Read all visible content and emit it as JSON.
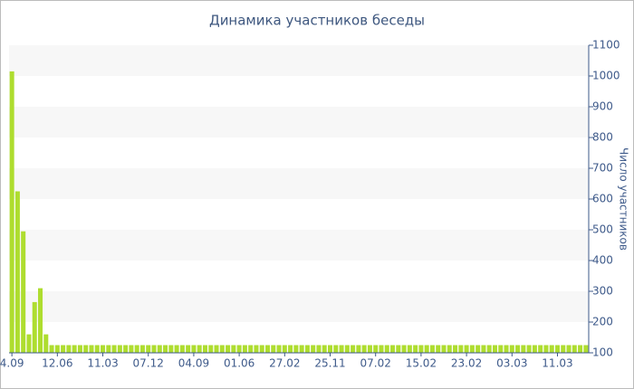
{
  "chart_data": {
    "type": "bar",
    "title": "Динамика участников беседы",
    "y_label": "Число участников",
    "color": "#aedd2f",
    "band_color": "#f7f7f7",
    "axis_side": "right",
    "categories": [
      "4.09",
      null,
      null,
      null,
      null,
      null,
      null,
      null,
      "12.06",
      null,
      null,
      null,
      null,
      null,
      null,
      null,
      "11.03",
      null,
      null,
      null,
      null,
      null,
      null,
      null,
      "07.12",
      null,
      null,
      null,
      null,
      null,
      null,
      null,
      "04.09",
      null,
      null,
      null,
      null,
      null,
      null,
      null,
      "01.06",
      null,
      null,
      null,
      null,
      null,
      null,
      null,
      "27.02",
      null,
      null,
      null,
      null,
      null,
      null,
      null,
      "25.11",
      null,
      null,
      null,
      null,
      null,
      null,
      null,
      "07.02",
      null,
      null,
      null,
      null,
      null,
      null,
      null,
      "15.02",
      null,
      null,
      null,
      null,
      null,
      null,
      null,
      "23.02",
      null,
      null,
      null,
      null,
      null,
      null,
      null,
      "03.03",
      null,
      null,
      null,
      null,
      null,
      null,
      null,
      "11.03",
      null,
      null,
      null,
      null,
      null
    ],
    "values": [
      1015,
      625,
      495,
      160,
      265,
      310,
      160,
      125,
      125,
      125,
      125,
      125,
      125,
      125,
      125,
      125,
      125,
      125,
      125,
      125,
      125,
      125,
      125,
      125,
      125,
      125,
      125,
      125,
      125,
      125,
      125,
      125,
      125,
      125,
      125,
      125,
      125,
      125,
      125,
      125,
      125,
      125,
      125,
      125,
      125,
      125,
      125,
      125,
      125,
      125,
      125,
      125,
      125,
      125,
      125,
      125,
      125,
      125,
      125,
      125,
      125,
      125,
      125,
      125,
      125,
      125,
      125,
      125,
      125,
      125,
      125,
      125,
      125,
      125,
      125,
      125,
      125,
      125,
      125,
      125,
      125,
      125,
      125,
      125,
      125,
      125,
      125,
      125,
      125,
      125,
      125,
      125,
      125,
      125,
      125,
      125,
      125,
      125,
      125,
      125,
      125,
      125
    ],
    "ylim": [
      100,
      1100
    ],
    "yticks": [
      100,
      200,
      300,
      400,
      500,
      600,
      700,
      800,
      900,
      1000,
      1100
    ],
    "grid": "bands"
  }
}
